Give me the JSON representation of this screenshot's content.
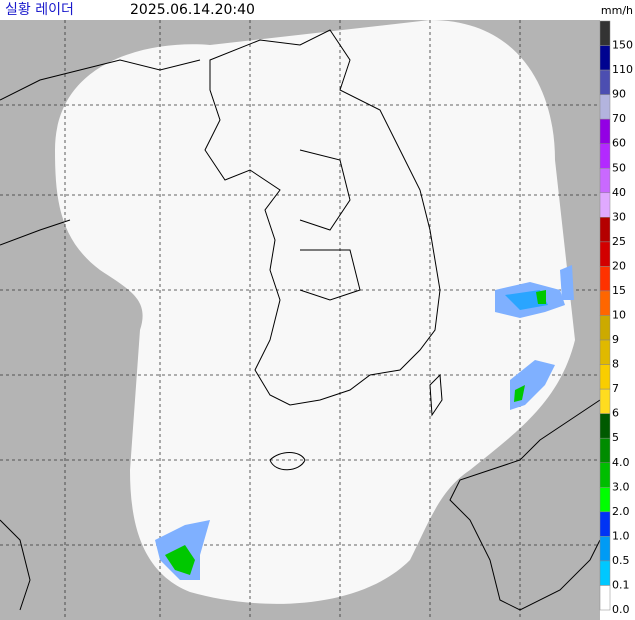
{
  "header": {
    "title": "실황 레이더",
    "time": "2025.06.14.20:40",
    "unit": "mm/h"
  },
  "legend": {
    "items": [
      {
        "label": "150",
        "color": "#333333"
      },
      {
        "label": "110",
        "color": "#000390"
      },
      {
        "label": "90",
        "color": "#4c4eb1"
      },
      {
        "label": "70",
        "color": "#b3b4de"
      },
      {
        "label": "60",
        "color": "#9300e4"
      },
      {
        "label": "50",
        "color": "#b329ff"
      },
      {
        "label": "40",
        "color": "#c969ff"
      },
      {
        "label": "30",
        "color": "#e0a9ff"
      },
      {
        "label": "25",
        "color": "#b40000"
      },
      {
        "label": "20",
        "color": "#d20000"
      },
      {
        "label": "15",
        "color": "#ff3200"
      },
      {
        "label": "10",
        "color": "#ff6600"
      },
      {
        "label": "9",
        "color": "#ccaa00"
      },
      {
        "label": "8",
        "color": "#e0b900"
      },
      {
        "label": "7",
        "color": "#f9cd00"
      },
      {
        "label": "6",
        "color": "#ffdc1f"
      },
      {
        "label": "5",
        "color": "#005a00"
      },
      {
        "label": "4.0",
        "color": "#008c00"
      },
      {
        "label": "3.0",
        "color": "#00be00"
      },
      {
        "label": "2.0",
        "color": "#00ff00"
      },
      {
        "label": "1.0",
        "color": "#0033f5"
      },
      {
        "label": "0.5",
        "color": "#009bf5"
      },
      {
        "label": "0.1",
        "color": "#00c8ff"
      },
      {
        "label": "0.0",
        "color": "#ffffff"
      }
    ]
  }
}
